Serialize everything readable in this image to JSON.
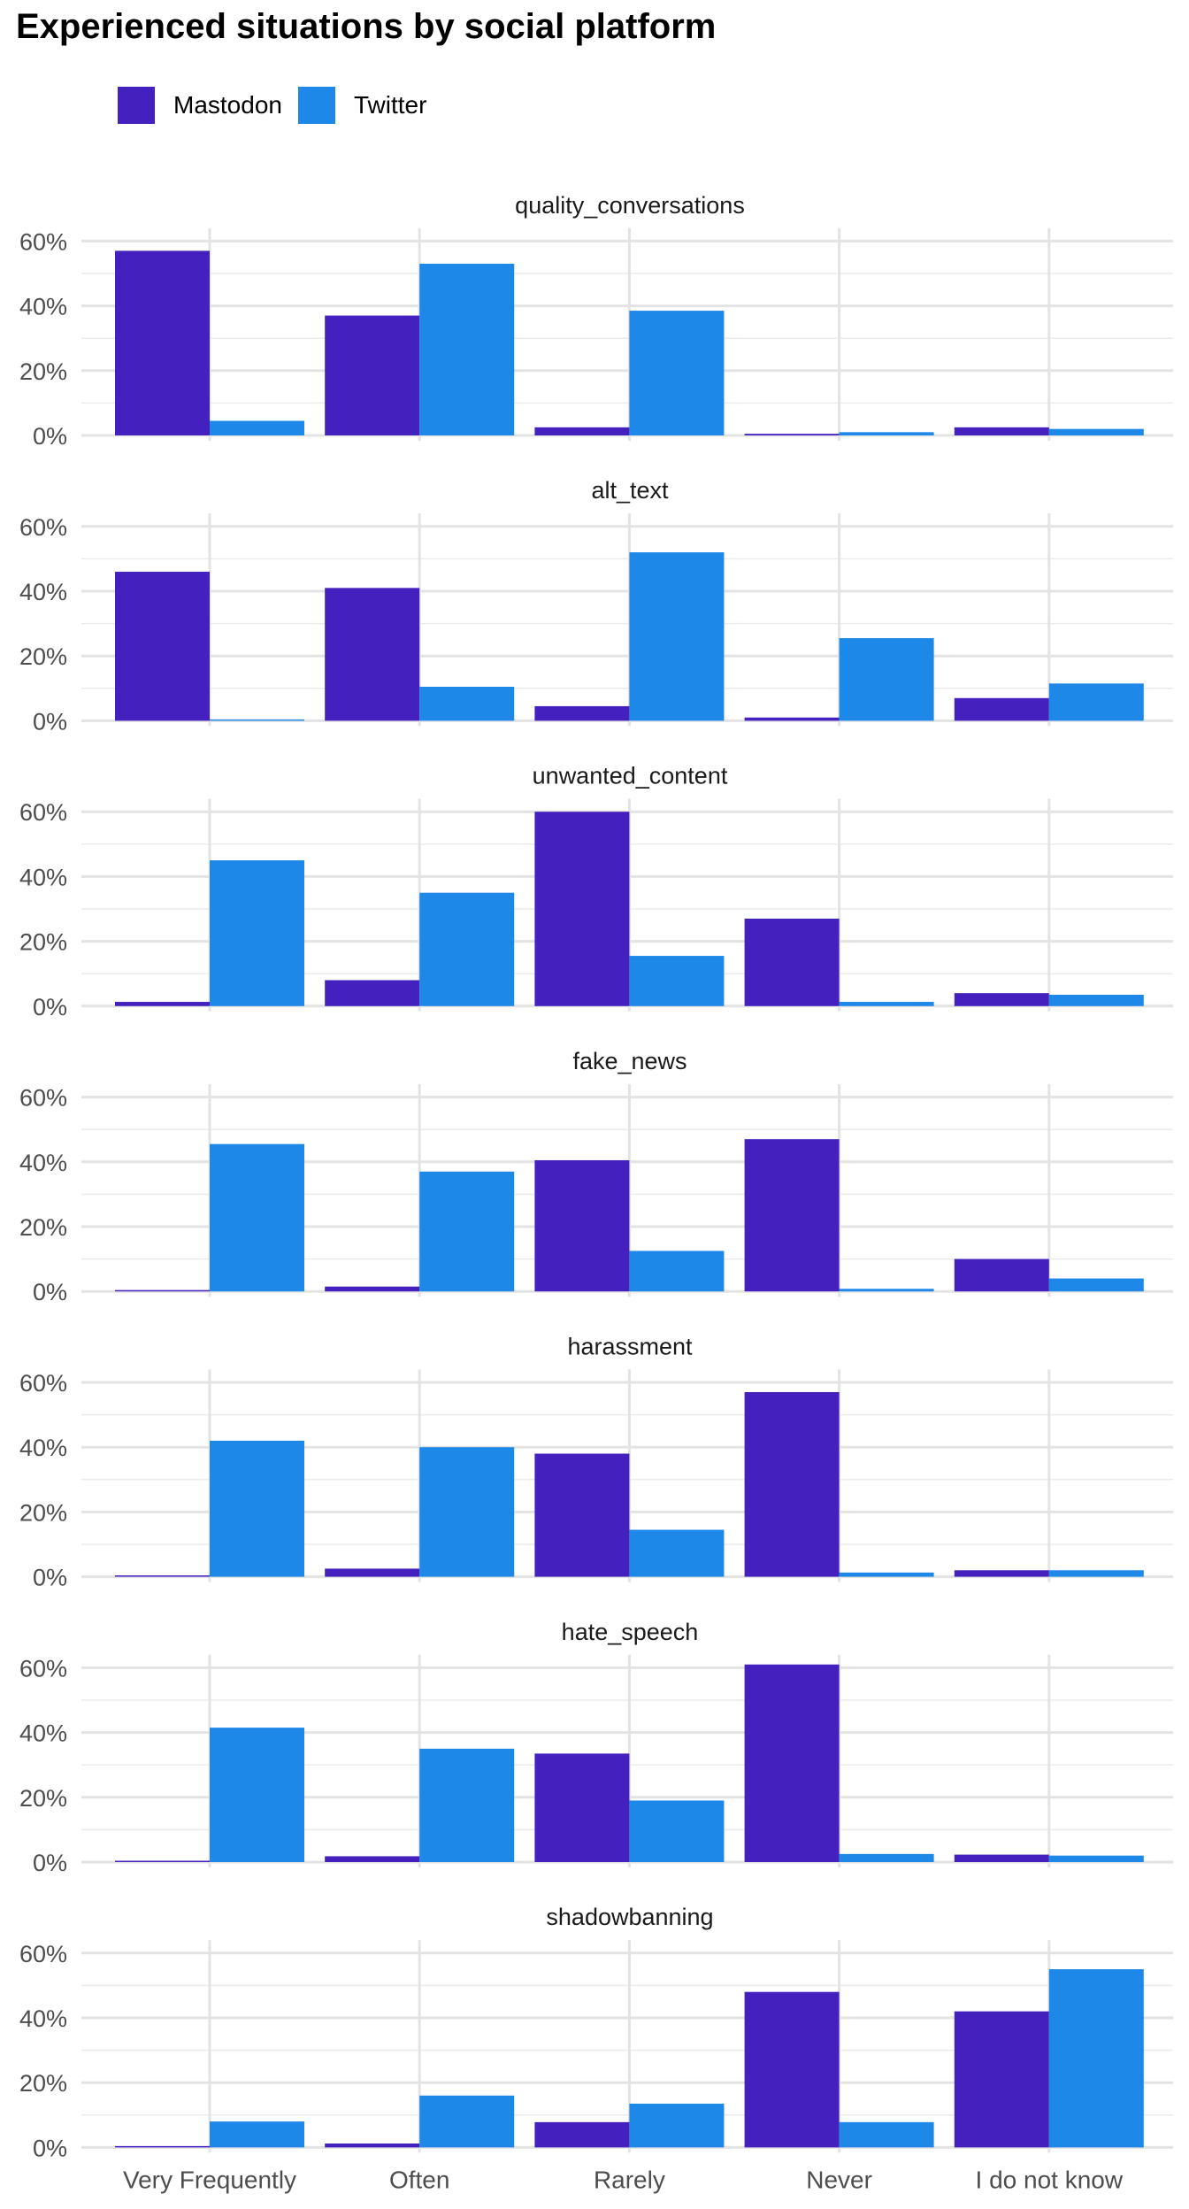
{
  "chart_data": {
    "type": "bar",
    "title": "Experienced situations by social platform",
    "categories": [
      "Very Frequently",
      "Often",
      "Rarely",
      "Never",
      "I do not know"
    ],
    "ylim": [
      0,
      0.64
    ],
    "y_ticks": [
      "0%",
      "20%",
      "40%",
      "60%"
    ],
    "y_tick_values": [
      0,
      0.2,
      0.4,
      0.6
    ],
    "legend": {
      "position": "top-left"
    },
    "grid": true,
    "series_meta": [
      {
        "name": "Mastodon",
        "color": "#4421BF"
      },
      {
        "name": "Twitter",
        "color": "#1E88E9"
      }
    ],
    "panels": [
      {
        "title": "quality_conversations",
        "series": [
          {
            "name": "Mastodon",
            "values": [
              0.57,
              0.37,
              0.025,
              0.005,
              0.025
            ]
          },
          {
            "name": "Twitter",
            "values": [
              0.045,
              0.53,
              0.385,
              0.01,
              0.02
            ]
          }
        ]
      },
      {
        "title": "alt_text",
        "series": [
          {
            "name": "Mastodon",
            "values": [
              0.46,
              0.41,
              0.045,
              0.01,
              0.07
            ]
          },
          {
            "name": "Twitter",
            "values": [
              0.003,
              0.105,
              0.52,
              0.255,
              0.115
            ]
          }
        ]
      },
      {
        "title": "unwanted_content",
        "series": [
          {
            "name": "Mastodon",
            "values": [
              0.013,
              0.08,
              0.6,
              0.27,
              0.04
            ]
          },
          {
            "name": "Twitter",
            "values": [
              0.45,
              0.35,
              0.155,
              0.013,
              0.035
            ]
          }
        ]
      },
      {
        "title": "fake_news",
        "series": [
          {
            "name": "Mastodon",
            "values": [
              0.003,
              0.015,
              0.405,
              0.47,
              0.1
            ]
          },
          {
            "name": "Twitter",
            "values": [
              0.455,
              0.37,
              0.125,
              0.008,
              0.04
            ]
          }
        ]
      },
      {
        "title": "harassment",
        "series": [
          {
            "name": "Mastodon",
            "values": [
              0.004,
              0.025,
              0.38,
              0.57,
              0.02
            ]
          },
          {
            "name": "Twitter",
            "values": [
              0.42,
              0.4,
              0.145,
              0.013,
              0.02
            ]
          }
        ]
      },
      {
        "title": "hate_speech",
        "series": [
          {
            "name": "Mastodon",
            "values": [
              0.004,
              0.018,
              0.335,
              0.61,
              0.023
            ]
          },
          {
            "name": "Twitter",
            "values": [
              0.415,
              0.35,
              0.19,
              0.025,
              0.02
            ]
          }
        ]
      },
      {
        "title": "shadowbanning",
        "series": [
          {
            "name": "Mastodon",
            "values": [
              0.004,
              0.012,
              0.078,
              0.48,
              0.42
            ]
          },
          {
            "name": "Twitter",
            "values": [
              0.08,
              0.16,
              0.135,
              0.078,
              0.55
            ]
          }
        ]
      }
    ]
  }
}
